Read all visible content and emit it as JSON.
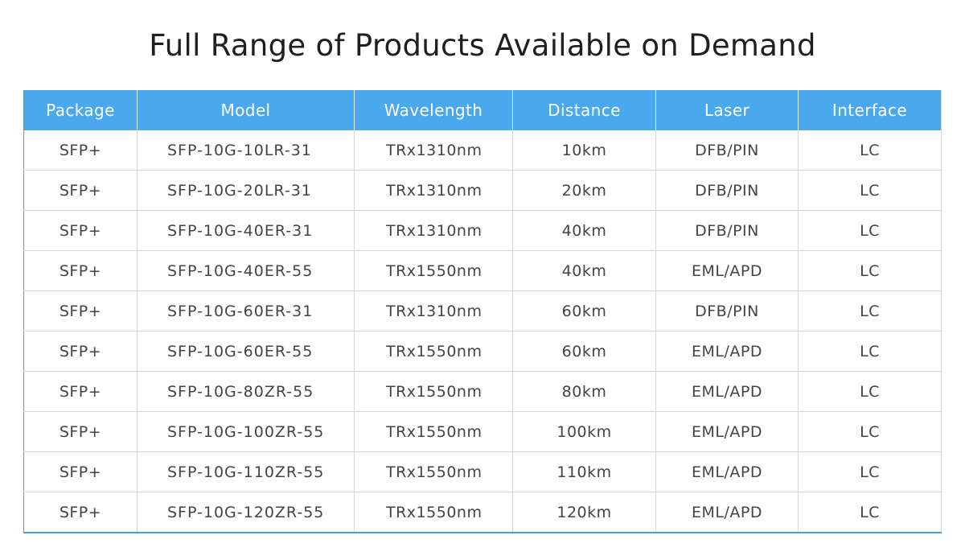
{
  "title": "Full Range of Products Available on Demand",
  "colors": {
    "header_bg": "#4aa8ec",
    "header_text": "#ffffff",
    "border": "#d7d7d7",
    "accent_border": "#4a9fd4"
  },
  "table": {
    "headers": [
      "Package",
      "Model",
      "Wavelength",
      "Distance",
      "Laser",
      "Interface"
    ],
    "rows": [
      [
        "SFP+",
        "SFP-10G-10LR-31",
        "TRx1310nm",
        "10km",
        "DFB/PIN",
        "LC"
      ],
      [
        "SFP+",
        "SFP-10G-20LR-31",
        "TRx1310nm",
        "20km",
        "DFB/PIN",
        "LC"
      ],
      [
        "SFP+",
        "SFP-10G-40ER-31",
        "TRx1310nm",
        "40km",
        "DFB/PIN",
        "LC"
      ],
      [
        "SFP+",
        "SFP-10G-40ER-55",
        "TRx1550nm",
        "40km",
        "EML/APD",
        "LC"
      ],
      [
        "SFP+",
        "SFP-10G-60ER-31",
        "TRx1310nm",
        "60km",
        "DFB/PIN",
        "LC"
      ],
      [
        "SFP+",
        "SFP-10G-60ER-55",
        "TRx1550nm",
        "60km",
        "EML/APD",
        "LC"
      ],
      [
        "SFP+",
        "SFP-10G-80ZR-55",
        "TRx1550nm",
        "80km",
        "EML/APD",
        "LC"
      ],
      [
        "SFP+",
        "SFP-10G-100ZR-55",
        "TRx1550nm",
        "100km",
        "EML/APD",
        "LC"
      ],
      [
        "SFP+",
        "SFP-10G-110ZR-55",
        "TRx1550nm",
        "110km",
        "EML/APD",
        "LC"
      ],
      [
        "SFP+",
        "SFP-10G-120ZR-55",
        "TRx1550nm",
        "120km",
        "EML/APD",
        "LC"
      ]
    ]
  }
}
